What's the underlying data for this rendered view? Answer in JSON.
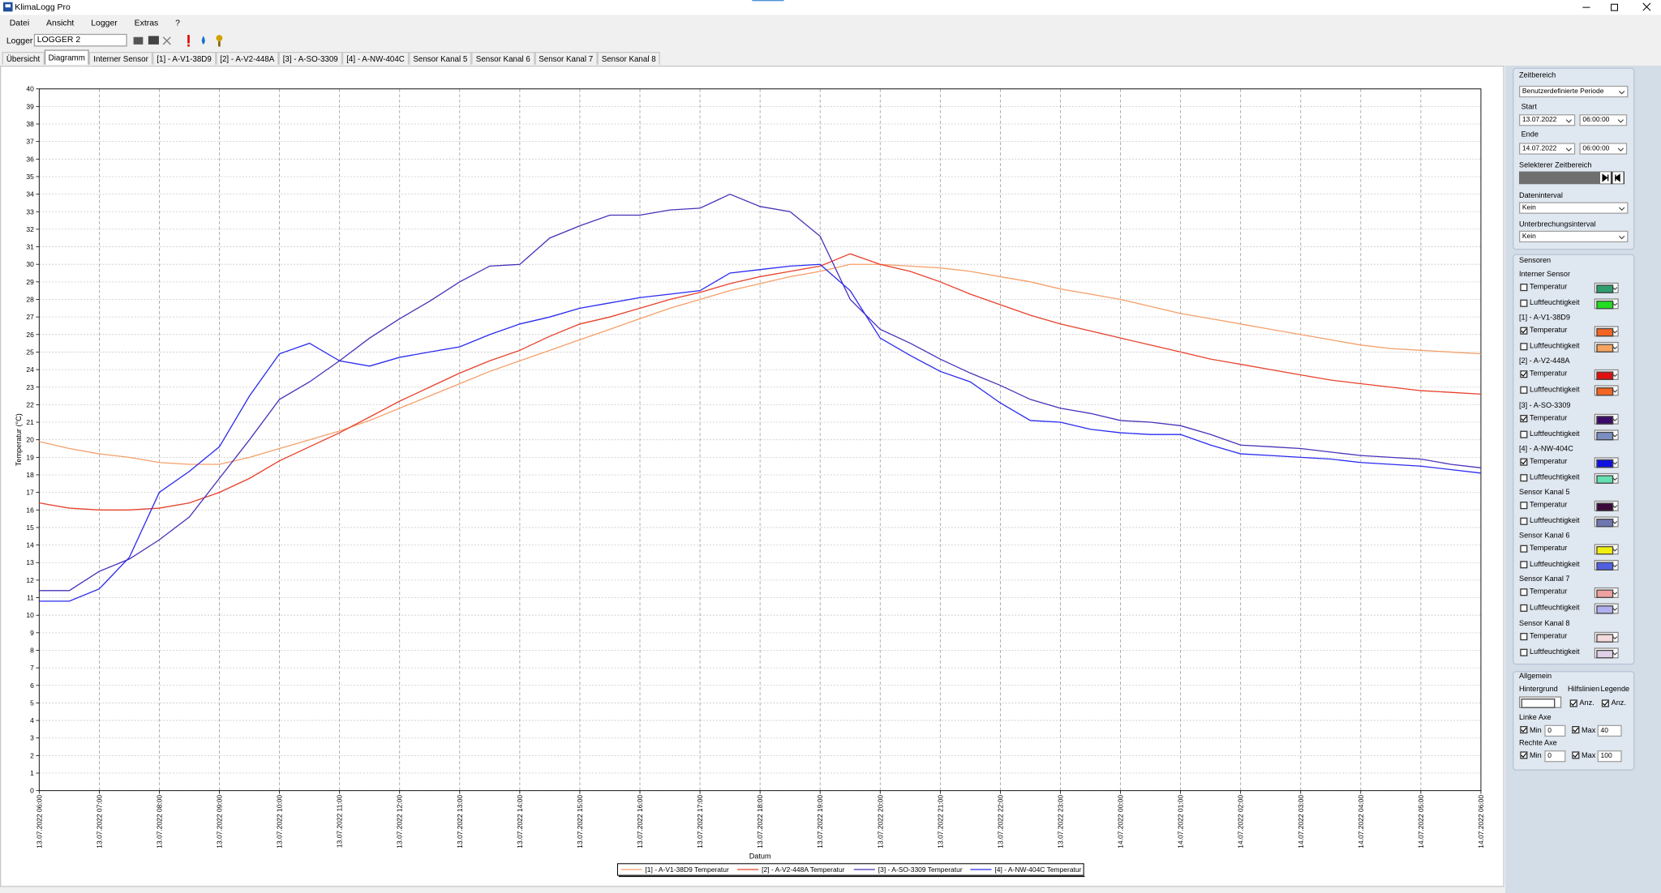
{
  "window": {
    "title": "KlimaLogg Pro"
  },
  "menu": [
    "Datei",
    "Ansicht",
    "Logger",
    "Extras",
    "?"
  ],
  "toolbar": {
    "label": "Logger",
    "logger": "LOGGER 2"
  },
  "tabs": [
    "Übersicht",
    "Diagramm",
    "Interner Sensor",
    "[1] - A-V1-38D9",
    "[2] - A-V2-448A",
    "[3] - A-SO-3309",
    "[4] - A-NW-404C",
    "Sensor Kanal 5",
    "Sensor Kanal 6",
    "Sensor Kanal 7",
    "Sensor Kanal 8"
  ],
  "active_tab": 1,
  "chart_data": {
    "type": "line",
    "y_label": "Temperatur (°C)",
    "x_label": "Datum",
    "grid": true,
    "legend": "bottom",
    "x": [
      "13.07.2022 06:00",
      "13.07.2022 06:30",
      "13.07.2022 07:00",
      "13.07.2022 07:30",
      "13.07.2022 08:00",
      "13.07.2022 08:30",
      "13.07.2022 09:00",
      "13.07.2022 09:30",
      "13.07.2022 10:00",
      "13.07.2022 10:30",
      "13.07.2022 11:00",
      "13.07.2022 11:30",
      "13.07.2022 12:00",
      "13.07.2022 12:30",
      "13.07.2022 13:00",
      "13.07.2022 13:30",
      "13.07.2022 14:00",
      "13.07.2022 14:30",
      "13.07.2022 15:00",
      "13.07.2022 15:30",
      "13.07.2022 16:00",
      "13.07.2022 16:30",
      "13.07.2022 17:00",
      "13.07.2022 17:30",
      "13.07.2022 18:00",
      "13.07.2022 18:30",
      "13.07.2022 19:00",
      "13.07.2022 19:30",
      "13.07.2022 20:00",
      "13.07.2022 20:30",
      "13.07.2022 21:00",
      "13.07.2022 21:30",
      "13.07.2022 22:00",
      "13.07.2022 22:30",
      "13.07.2022 23:00",
      "13.07.2022 23:30",
      "14.07.2022 00:00",
      "14.07.2022 00:30",
      "14.07.2022 01:00",
      "14.07.2022 01:30",
      "14.07.2022 02:00",
      "14.07.2022 02:30",
      "14.07.2022 03:00",
      "14.07.2022 03:30",
      "14.07.2022 04:00",
      "14.07.2022 04:30",
      "14.07.2022 05:00",
      "14.07.2022 05:30",
      "14.07.2022 06:00"
    ],
    "ylim": [
      0,
      40
    ],
    "yticks": [
      0,
      1,
      2,
      3,
      4,
      5,
      6,
      7,
      8,
      9,
      10,
      11,
      12,
      13,
      14,
      15,
      16,
      17,
      18,
      19,
      20,
      21,
      22,
      23,
      24,
      25,
      26,
      27,
      28,
      29,
      30,
      31,
      32,
      33,
      34,
      35,
      36,
      37,
      38,
      39,
      40
    ],
    "series": [
      {
        "name": "[1] - A-V1-38D9 Temperatur",
        "color": "#f5a06a",
        "values": [
          19.9,
          19.5,
          19.2,
          19.0,
          18.7,
          18.6,
          18.6,
          19.0,
          19.5,
          20.0,
          20.5,
          21.1,
          21.8,
          22.5,
          23.2,
          23.9,
          24.5,
          25.1,
          25.7,
          26.3,
          26.9,
          27.5,
          28.0,
          28.5,
          28.9,
          29.3,
          29.6,
          30.0,
          30.0,
          29.9,
          29.8,
          29.6,
          29.3,
          29.0,
          28.6,
          28.3,
          28.0,
          27.6,
          27.2,
          26.9,
          26.6,
          26.3,
          26.0,
          25.7,
          25.4,
          25.2,
          25.1,
          25.0,
          24.9
        ]
      },
      {
        "name": "[2] - A-V2-448A Temperatur",
        "color": "#e8402a",
        "values": [
          16.4,
          16.1,
          16.0,
          16.0,
          16.1,
          16.4,
          17.0,
          17.8,
          18.8,
          19.6,
          20.4,
          21.3,
          22.2,
          23.0,
          23.8,
          24.5,
          25.1,
          25.9,
          26.6,
          27.0,
          27.5,
          28.0,
          28.4,
          28.9,
          29.3,
          29.6,
          29.9,
          30.6,
          30.0,
          29.6,
          29.0,
          28.3,
          27.7,
          27.1,
          26.6,
          26.2,
          25.8,
          25.4,
          25.0,
          24.6,
          24.3,
          24.0,
          23.7,
          23.4,
          23.2,
          23.0,
          22.8,
          22.7,
          22.6
        ]
      },
      {
        "name": "[3] - A-SO-3309 Temperatur",
        "color": "#4a30b8",
        "values": [
          11.4,
          11.4,
          12.5,
          13.2,
          14.3,
          15.6,
          17.8,
          20.0,
          22.3,
          23.3,
          24.5,
          25.8,
          26.9,
          27.9,
          29.0,
          29.9,
          30.0,
          31.5,
          32.2,
          32.8,
          32.8,
          33.1,
          33.2,
          34.0,
          33.3,
          33.0,
          31.6,
          28.0,
          26.3,
          25.5,
          24.6,
          23.8,
          23.1,
          22.3,
          21.8,
          21.5,
          21.1,
          21.0,
          20.8,
          20.3,
          19.7,
          19.6,
          19.5,
          19.3,
          19.1,
          19.0,
          18.9,
          18.6,
          18.4
        ]
      },
      {
        "name": "[4] - A-NW-404C Temperatur",
        "color": "#2a2af0",
        "values": [
          10.8,
          10.8,
          11.5,
          13.3,
          17.0,
          18.2,
          19.6,
          22.5,
          24.9,
          25.5,
          24.5,
          24.2,
          24.7,
          25.0,
          25.3,
          26.0,
          26.6,
          27.0,
          27.5,
          27.8,
          28.1,
          28.3,
          28.5,
          29.5,
          29.7,
          29.9,
          30.0,
          28.5,
          25.8,
          24.8,
          23.9,
          23.3,
          22.1,
          21.1,
          21.0,
          20.6,
          20.4,
          20.3,
          20.3,
          19.7,
          19.2,
          19.1,
          19.0,
          18.9,
          18.7,
          18.6,
          18.5,
          18.3,
          18.1
        ]
      }
    ]
  },
  "sidebar": {
    "zeitbereich": {
      "title": "Zeitbereich",
      "period": "Benutzerdefinierte Periode",
      "start_label": "Start",
      "start_date": "13.07.2022",
      "start_time": "06:00:00",
      "end_label": "Ende",
      "end_date": "14.07.2022",
      "end_time": "06:00:00",
      "selection_label": "Selekterer Zeitbereich",
      "data_interval_label": "Dateninterval",
      "data_interval": "Kein",
      "break_interval_label": "Unterbrechungsinterval",
      "break_interval": "Kein"
    },
    "sensors": {
      "title": "Sensoren",
      "groups": [
        {
          "name": "Interner Sensor",
          "items": [
            {
              "label": "Temperatur",
              "checked": false,
              "color": "#2e9e6e"
            },
            {
              "label": "Luftfeuchtigkeit",
              "checked": false,
              "color": "#22dd22"
            }
          ]
        },
        {
          "name": "[1] - A-V1-38D9",
          "items": [
            {
              "label": "Temperatur",
              "checked": true,
              "color": "#f26522"
            },
            {
              "label": "Luftfeuchtigkeit",
              "checked": false,
              "color": "#f4a460"
            }
          ]
        },
        {
          "name": "[2] - A-V2-448A",
          "items": [
            {
              "label": "Temperatur",
              "checked": true,
              "color": "#e01010"
            },
            {
              "label": "Luftfeuchtigkeit",
              "checked": false,
              "color": "#f26522"
            }
          ]
        },
        {
          "name": "[3] - A-SO-3309",
          "items": [
            {
              "label": "Temperatur",
              "checked": true,
              "color": "#3a0a6a"
            },
            {
              "label": "Luftfeuchtigkeit",
              "checked": false,
              "color": "#7a8fc0"
            }
          ]
        },
        {
          "name": "[4] - A-NW-404C",
          "items": [
            {
              "label": "Temperatur",
              "checked": true,
              "color": "#1010e0"
            },
            {
              "label": "Luftfeuchtigkeit",
              "checked": false,
              "color": "#66e0b0"
            }
          ]
        },
        {
          "name": "Sensor Kanal 5",
          "items": [
            {
              "label": "Temperatur",
              "checked": false,
              "color": "#3a0a3a"
            },
            {
              "label": "Luftfeuchtigkeit",
              "checked": false,
              "color": "#6e78b0"
            }
          ]
        },
        {
          "name": "Sensor Kanal 6",
          "items": [
            {
              "label": "Temperatur",
              "checked": false,
              "color": "#f0f010"
            },
            {
              "label": "Luftfeuchtigkeit",
              "checked": false,
              "color": "#5060e0"
            }
          ]
        },
        {
          "name": "Sensor Kanal 7",
          "items": [
            {
              "label": "Temperatur",
              "checked": false,
              "color": "#f0a0a0"
            },
            {
              "label": "Luftfeuchtigkeit",
              "checked": false,
              "color": "#b0b0f0"
            }
          ]
        },
        {
          "name": "Sensor Kanal 8",
          "items": [
            {
              "label": "Temperatur",
              "checked": false,
              "color": "#f4dada"
            },
            {
              "label": "Luftfeuchtigkeit",
              "checked": false,
              "color": "#e0d0e8"
            }
          ]
        }
      ]
    },
    "allgemein": {
      "title": "Allgemein",
      "background_label": "Hintergrund",
      "background_color": "#ffffff",
      "gridlines_label": "Hilfslinien",
      "gridlines_show": {
        "label": "Anz.",
        "checked": true
      },
      "legend_label": "Legende",
      "legend_show": {
        "label": "Anz.",
        "checked": true
      },
      "axes": [
        {
          "title": "Linke Axe",
          "min_label": "Min",
          "min_checked": true,
          "min": 0,
          "max_label": "Max",
          "max_checked": true,
          "max": 40
        },
        {
          "title": "Rechte Axe",
          "min_label": "Min",
          "min_checked": true,
          "min": 0,
          "max_label": "Max",
          "max_checked": true,
          "max": 100
        }
      ]
    }
  }
}
